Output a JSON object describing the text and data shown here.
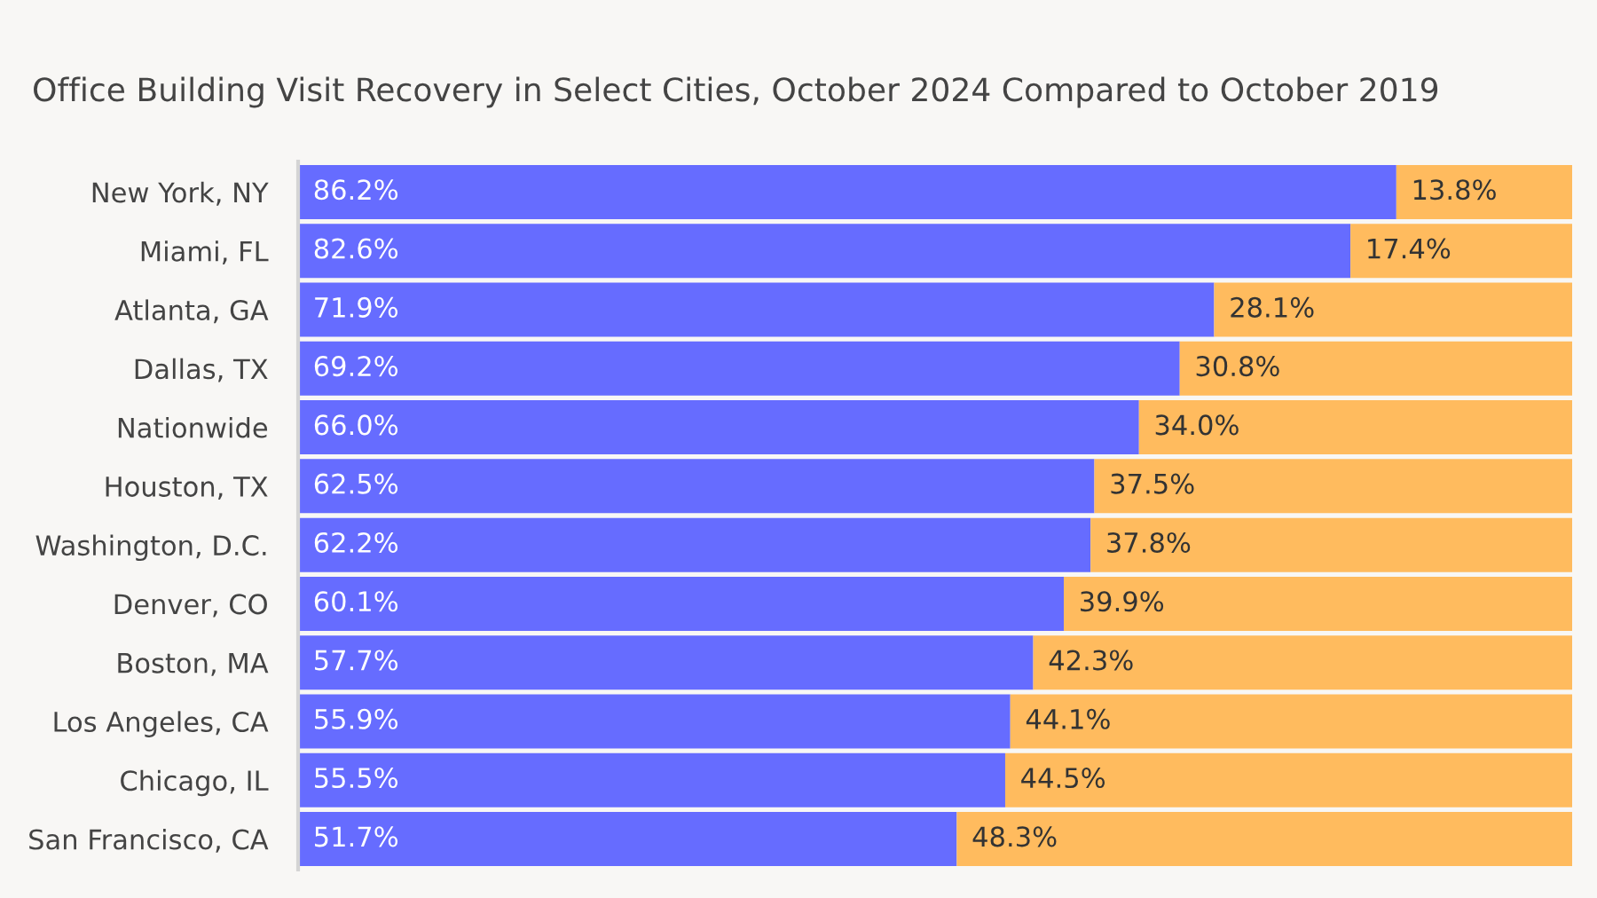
{
  "chart_data": {
    "type": "bar",
    "orientation": "horizontal",
    "stacked": true,
    "tick_labels": "y",
    "title": "Office Building Visit Recovery in Select Cities, October 2024 Compared to October 2019",
    "categories": [
      "New York, NY",
      "Miami, FL",
      "Atlanta, GA",
      "Dallas, TX",
      "Nationwide",
      "Houston, TX",
      "Washington, D.C.",
      "Denver, CO",
      "Boston, MA",
      "Los Angeles, CA",
      "Chicago, IL",
      "San Francisco, CA"
    ],
    "series": [
      {
        "color": "#666cff",
        "values": [
          86.2,
          82.6,
          71.9,
          69.2,
          66.0,
          62.5,
          62.2,
          60.1,
          57.7,
          55.9,
          55.5,
          51.7
        ],
        "value_labels": [
          "86.2%",
          "82.6%",
          "71.9%",
          "69.2%",
          "66.0%",
          "62.5%",
          "62.2%",
          "60.1%",
          "57.7%",
          "55.9%",
          "55.5%",
          "51.7%"
        ]
      },
      {
        "color": "#ffbb5e",
        "values": [
          13.8,
          17.4,
          28.1,
          30.8,
          34.0,
          37.5,
          37.8,
          39.9,
          42.3,
          44.1,
          44.5,
          48.3
        ],
        "value_labels": [
          "13.8%",
          "17.4%",
          "28.1%",
          "30.8%",
          "34.0%",
          "37.5%",
          "37.8%",
          "39.9%",
          "42.3%",
          "44.1%",
          "44.5%",
          "48.3%"
        ]
      }
    ]
  }
}
